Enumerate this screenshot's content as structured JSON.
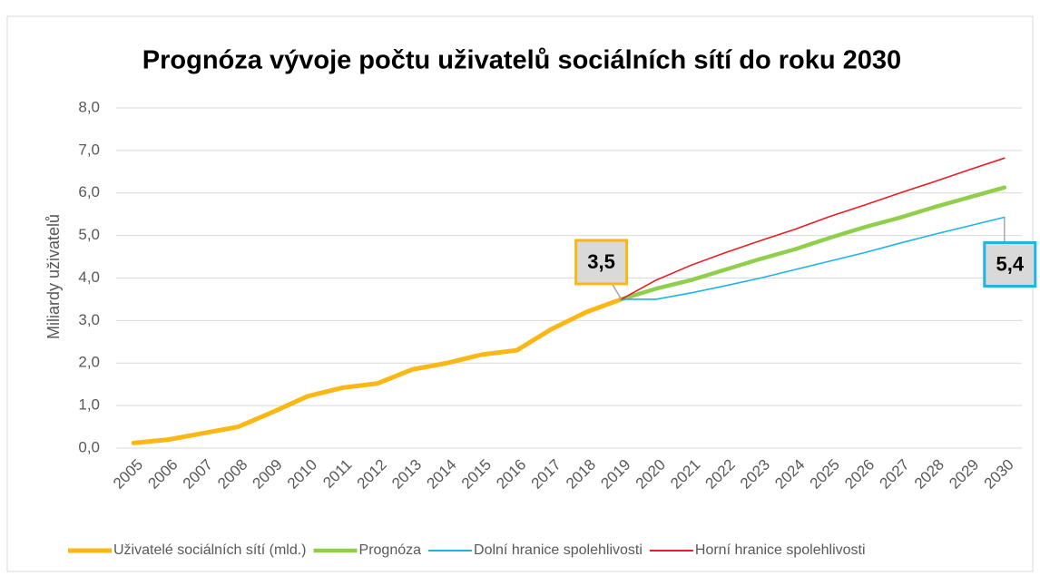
{
  "chart_data": {
    "type": "line",
    "title": "Prognóza vývoje počtu uživatelů sociálních sítí do roku 2030",
    "y_label": "Miliardy uživatelů",
    "categories": [
      "2005",
      "2006",
      "2007",
      "2008",
      "2009",
      "2010",
      "2011",
      "2012",
      "2013",
      "2014",
      "2015",
      "2016",
      "2017",
      "2018",
      "2019",
      "2020",
      "2021",
      "2022",
      "2023",
      "2024",
      "2025",
      "2026",
      "2027",
      "2028",
      "2029",
      "2030"
    ],
    "series": [
      {
        "name": "Uživatelé sociálních sítí (mld.)",
        "color": "#fbb713",
        "values": [
          0.12,
          0.2,
          0.35,
          0.5,
          0.85,
          1.22,
          1.42,
          1.52,
          1.85,
          2.0,
          2.2,
          2.3,
          2.8,
          3.2,
          3.5,
          null,
          null,
          null,
          null,
          null,
          null,
          null,
          null,
          null,
          null,
          null
        ],
        "value_labels": [
          null,
          null,
          null,
          null,
          null,
          null,
          null,
          null,
          null,
          null,
          null,
          null,
          null,
          null,
          "3,5",
          null,
          null,
          null,
          null,
          null,
          null,
          null,
          null,
          null,
          null,
          null
        ]
      },
      {
        "name": "Prognóza",
        "color": "#8fcf4c",
        "values": [
          null,
          null,
          null,
          null,
          null,
          null,
          null,
          null,
          null,
          null,
          null,
          null,
          null,
          null,
          3.5,
          3.75,
          3.95,
          4.2,
          4.45,
          4.68,
          4.95,
          5.2,
          5.42,
          5.67,
          5.9,
          6.13
        ]
      },
      {
        "name": "Dolní hranice spolehlivosti",
        "color": "#1fb3e6",
        "values": [
          null,
          null,
          null,
          null,
          null,
          null,
          null,
          null,
          null,
          null,
          null,
          null,
          null,
          null,
          3.5,
          3.5,
          3.65,
          3.82,
          4.0,
          4.2,
          4.4,
          4.6,
          4.82,
          5.03,
          5.23,
          5.43
        ],
        "value_labels": [
          null,
          null,
          null,
          null,
          null,
          null,
          null,
          null,
          null,
          null,
          null,
          null,
          null,
          null,
          null,
          null,
          null,
          null,
          null,
          null,
          null,
          null,
          null,
          null,
          null,
          "5,4"
        ]
      },
      {
        "name": "Horní hranice spolehlivosti",
        "color": "#ed1c24",
        "values": [
          null,
          null,
          null,
          null,
          null,
          null,
          null,
          null,
          null,
          null,
          null,
          null,
          null,
          null,
          3.5,
          3.95,
          4.3,
          4.6,
          4.88,
          5.15,
          5.45,
          5.72,
          6.0,
          6.27,
          6.55,
          6.82
        ]
      }
    ],
    "ylim": [
      0,
      8
    ],
    "yticks": [
      {
        "value": 0,
        "label": "0,0"
      },
      {
        "value": 1,
        "label": "1,0"
      },
      {
        "value": 2,
        "label": "2,0"
      },
      {
        "value": 3,
        "label": "3,0"
      },
      {
        "value": 4,
        "label": "4,0"
      },
      {
        "value": 5,
        "label": "5,0"
      },
      {
        "value": 6,
        "label": "6,0"
      },
      {
        "value": 7,
        "label": "7,0"
      },
      {
        "value": 8,
        "label": "8,0"
      }
    ],
    "grid": true,
    "legend": "bottom"
  }
}
